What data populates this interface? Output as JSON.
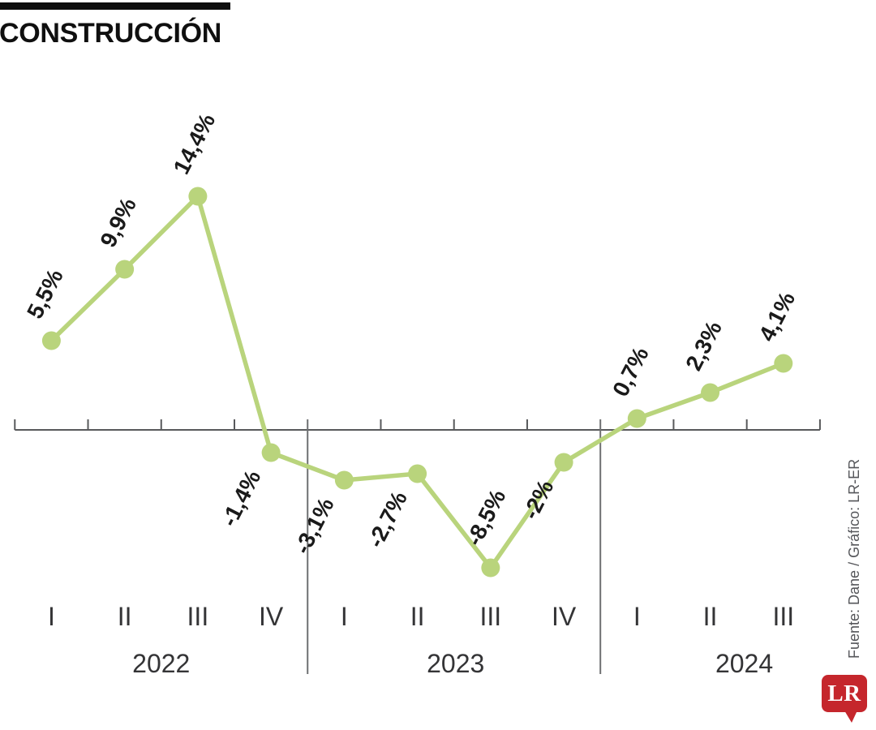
{
  "header": {
    "title": "CONSTRUCCIÓN"
  },
  "chart_data": {
    "type": "line",
    "title": "CONSTRUCCIÓN",
    "unit": "%",
    "categories": [
      "I",
      "II",
      "III",
      "IV",
      "I",
      "II",
      "III",
      "IV",
      "I",
      "II",
      "III"
    ],
    "year_groups": [
      {
        "year": "2022",
        "quarters": 4
      },
      {
        "year": "2023",
        "quarters": 4
      },
      {
        "year": "2024",
        "quarters": 3
      }
    ],
    "values": [
      5.5,
      9.9,
      14.4,
      -1.4,
      -3.1,
      -2.7,
      -8.5,
      -2,
      0.7,
      2.3,
      4.1
    ],
    "labels": [
      "5,5%",
      "9,9%",
      "14,4%",
      "-1,4%",
      "-3,1%",
      "-2,7%",
      "-8,5%",
      "-2%",
      "0,7%",
      "2,3%",
      "4,1%"
    ],
    "label_side": [
      "above",
      "above",
      "above",
      "below",
      "below",
      "below",
      "above",
      "below",
      "above",
      "above",
      "above"
    ],
    "line_color": "#b9d47c",
    "axis_color": "#58595b",
    "separator_color": "#6e6f71",
    "label_color": "#1a1a1a",
    "axis_text_color": "#343436",
    "ylim": [
      -10,
      16
    ],
    "grid": false,
    "legend": "none"
  },
  "footer": {
    "source": "Fuente: Dane / Gráfico: LR-ER",
    "logo_text": "LR",
    "logo_color": "#c5262c"
  }
}
